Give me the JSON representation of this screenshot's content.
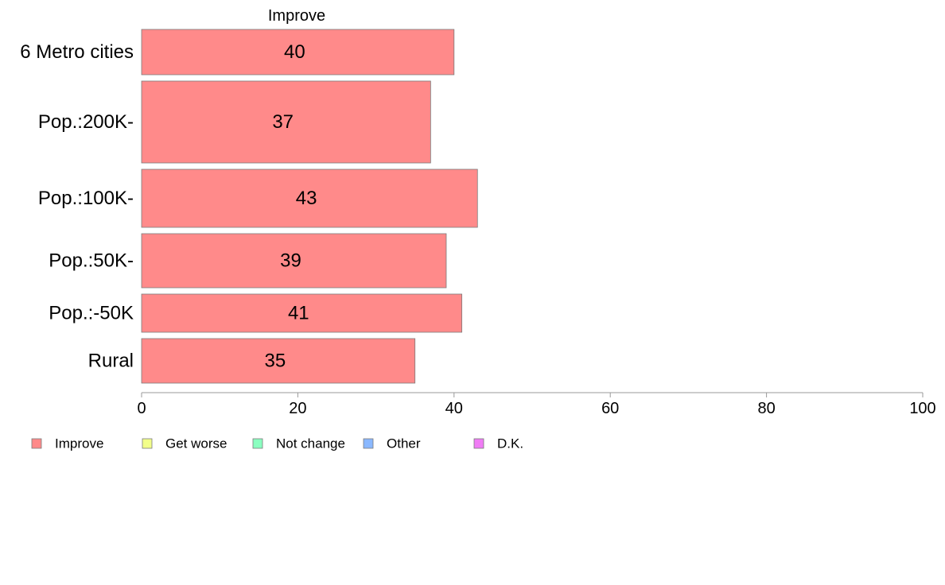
{
  "chart_data": {
    "type": "bar",
    "orientation": "horizontal",
    "stacked": true,
    "series_header": "Improve",
    "categories": [
      "6 Metro cities",
      "Pop.:200K-",
      "Pop.:100K-",
      "Pop.:50K-",
      "Pop.:-50K",
      "Rural"
    ],
    "series": [
      {
        "name": "Improve",
        "color": "#ff8a8a",
        "values": [
          40,
          37,
          43,
          39,
          41,
          35
        ],
        "data_labels": [
          "40",
          "37",
          "43",
          "39",
          "41",
          "35"
        ]
      }
    ],
    "legend": [
      {
        "label": "Improve",
        "color": "#ff8a8a"
      },
      {
        "label": "Get worse",
        "color": "#f2ff8a"
      },
      {
        "label": "Not change",
        "color": "#8affc0"
      },
      {
        "label": "Other",
        "color": "#8ab8ff"
      },
      {
        "label": "D.K.",
        "color": "#f07cf5"
      }
    ],
    "legend_position": "bottom-left",
    "xlim": [
      0,
      100
    ],
    "x_ticks": [
      0,
      20,
      40,
      60,
      80,
      100
    ],
    "x_tick_labels": [
      "0",
      "20",
      "40",
      "60",
      "80",
      "100"
    ],
    "grid": false
  }
}
